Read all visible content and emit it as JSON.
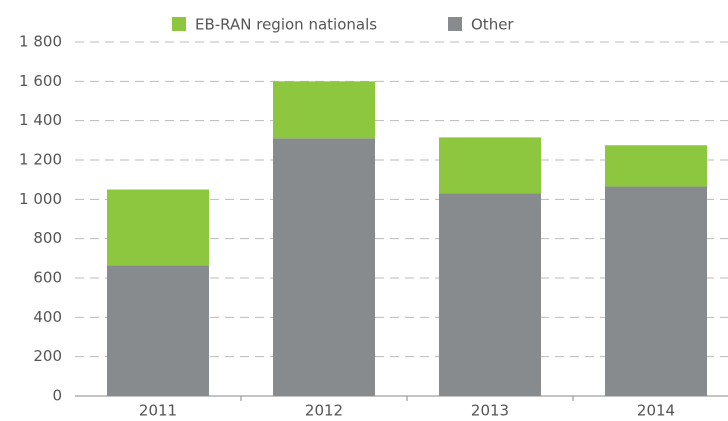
{
  "chart_data": {
    "type": "stacked_bar",
    "categories": [
      "2011",
      "2012",
      "2013",
      "2014"
    ],
    "series": [
      {
        "name": "EB-RAN region nationals",
        "color": "#8dc63f",
        "values": [
          385,
          290,
          285,
          210
        ]
      },
      {
        "name": "Other",
        "color": "#878b8e",
        "values": [
          665,
          1310,
          1030,
          1065
        ]
      }
    ],
    "ylim": [
      0,
      1800
    ],
    "yticks": [
      0,
      200,
      400,
      600,
      800,
      {
        "value": 1000,
        "label": "1 000"
      },
      {
        "value": 1200,
        "label": "1 200"
      },
      {
        "value": 1400,
        "label": "1 400"
      },
      {
        "value": 1600,
        "label": "1 600"
      },
      {
        "value": 1800,
        "label": "1 800"
      }
    ],
    "grid": true,
    "legend": "top"
  }
}
